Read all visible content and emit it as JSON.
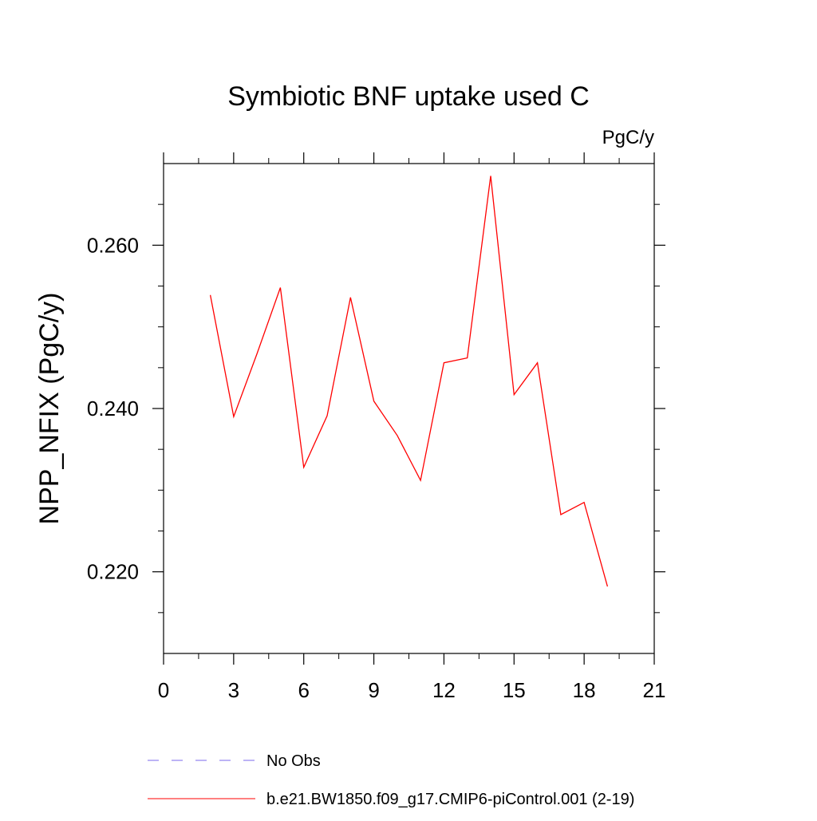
{
  "chart_data": {
    "type": "line",
    "title": "Symbiotic BNF uptake used C",
    "units": "PgC/y",
    "xlabel": "",
    "ylabel": "NPP_NFIX  (PgC/y)",
    "xlim": [
      0,
      21
    ],
    "ylim": [
      0.21,
      0.27
    ],
    "x_ticks": [
      0,
      3,
      6,
      9,
      12,
      15,
      18,
      21
    ],
    "x_tick_labels": [
      "0",
      "3",
      "6",
      "9",
      "12",
      "15",
      "18",
      "21"
    ],
    "y_ticks": [
      0.22,
      0.24,
      0.26
    ],
    "y_tick_labels": [
      "0.220",
      "0.240",
      "0.260"
    ],
    "grid": false,
    "legend_position": "bottom",
    "series": [
      {
        "name": "b.e21.BW1850.f09_g17.CMIP6-piControl.001 (2-19)",
        "color": "#ff0000",
        "style": "solid",
        "x": [
          2,
          3,
          4,
          5,
          6,
          7,
          8,
          9,
          10,
          11,
          12,
          13,
          14,
          15,
          16,
          17,
          18,
          19
        ],
        "y": [
          0.2539,
          0.239,
          0.2467,
          0.2548,
          0.2328,
          0.2391,
          0.2536,
          0.2409,
          0.2367,
          0.2312,
          0.2456,
          0.2462,
          0.2685,
          0.2417,
          0.2456,
          0.227,
          0.2285,
          0.2182
        ]
      }
    ],
    "legend": [
      {
        "label": "No Obs",
        "color": "#7b68ee",
        "style": "dashed"
      },
      {
        "label": "b.e21.BW1850.f09_g17.CMIP6-piControl.001 (2-19)",
        "color": "#ff0000",
        "style": "solid"
      }
    ]
  }
}
